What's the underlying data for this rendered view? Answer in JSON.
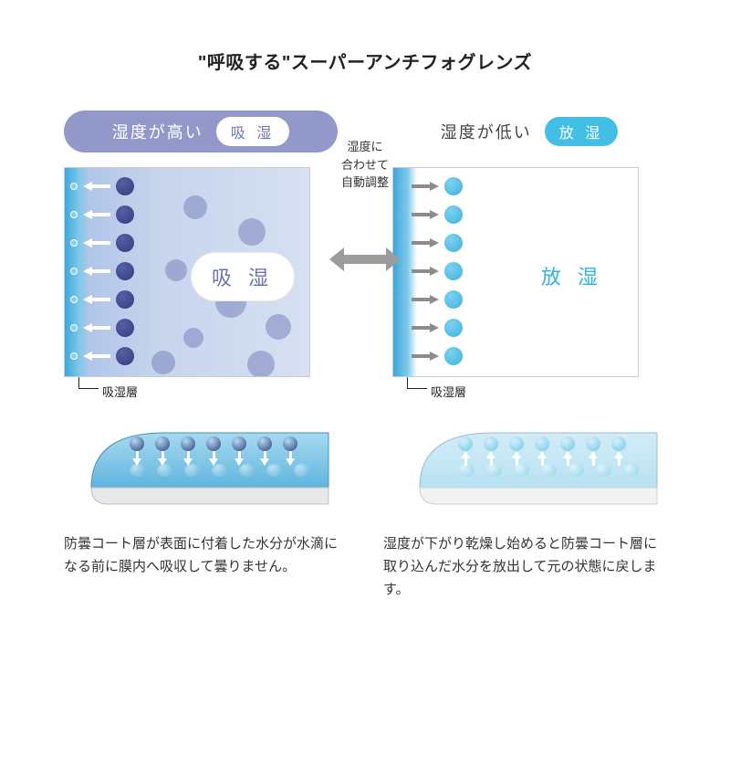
{
  "title": "\"呼吸する\"スーパーアンチフォグレンズ",
  "center_text": "湿度に\n合わせて\n自動調整",
  "left": {
    "pill_text": "湿度が高い",
    "pill_chip": "吸 湿",
    "panel_label": "吸 湿",
    "under_label": "吸湿層",
    "desc": "防曇コート層が表面に付着した水分が水滴になる前に膜内へ吸収して曇りません。",
    "style": {
      "pill_bg": "#9298c9",
      "pill_text_color": "#ffffff",
      "chip_bg": "#ffffff",
      "chip_text": "#7178b6",
      "dot_color": "#333d80",
      "dot_grad_top": "#5560a5",
      "lens_fill_top": "#a7d9ef",
      "lens_fill_bottom": "#5fb5de",
      "lens_stroke": "#4a90b8",
      "lens_dot_top": "#333d80",
      "lens_dot_bottom": "#5fb5de"
    }
  },
  "right": {
    "pill_text": "湿度が低い",
    "pill_chip": "放 湿",
    "panel_label": "放 湿",
    "under_label": "吸湿層",
    "desc": "湿度が下がり乾燥し始めると防曇コート層に取り込んだ水分を放出して元の状態に戻します。",
    "style": {
      "pill_bg": "transparent",
      "pill_text_color": "#444444",
      "chip_bg": "#43bfe6",
      "chip_text": "#ffffff",
      "dot_color": "#3fb2e0",
      "dot_grad_top": "#7dd1ee",
      "lens_fill_top": "#d3ecf7",
      "lens_fill_bottom": "#b8e1f2",
      "lens_stroke": "#8fbfd6",
      "lens_dot_top": "#6fc9ea",
      "lens_dot_bottom": "#8fd5ef"
    }
  },
  "layout": {
    "panel_rows": 7,
    "lens_dots": 7
  }
}
